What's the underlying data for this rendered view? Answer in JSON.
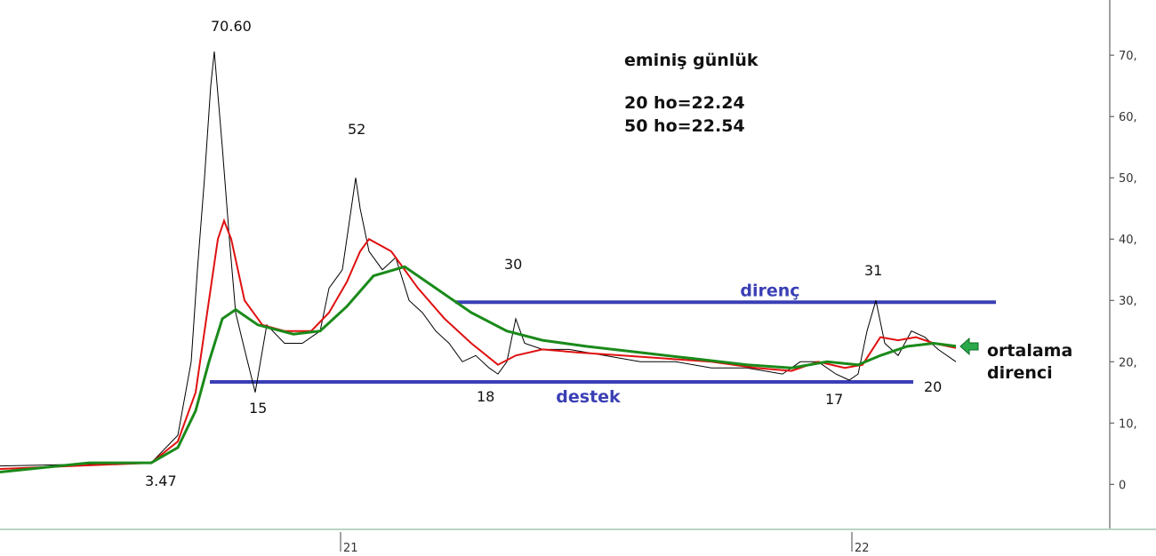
{
  "chart_data": {
    "type": "line",
    "title": "eminiş günlük",
    "xlim": [
      0,
      312
    ],
    "ylim": [
      -7.2,
      79
    ],
    "xticks": [
      {
        "value": 95.75,
        "label": "21"
      },
      {
        "value": 239.5,
        "label": "22"
      }
    ],
    "yticks": [
      0,
      {
        "value": 10,
        "label": "10,"
      },
      {
        "value": 20,
        "label": "20,"
      },
      {
        "value": 30,
        "label": "30,"
      },
      {
        "value": 40,
        "label": "40,"
      },
      {
        "value": 50,
        "label": "50,"
      },
      {
        "value": 60,
        "label": "60,"
      },
      {
        "value": 70,
        "label": "70,"
      }
    ],
    "series": [
      {
        "color": "#000000",
        "x": [
          0,
          42.5,
          50,
          53.75,
          55.5,
          57.5,
          59.25,
          60.25,
          62.5,
          64.5,
          66.25,
          68.75,
          71.75,
          75,
          80,
          85,
          90,
          92.5,
          96.25,
          100,
          101.25,
          103.75,
          107.5,
          111.25,
          115,
          118.75,
          122.5,
          126.25,
          130,
          133.75,
          137.5,
          140,
          142.5,
          145,
          147.5,
          152.5,
          160,
          170,
          180,
          190,
          200,
          210,
          220,
          225,
          230,
          235,
          238.75,
          241.25,
          243.75,
          246.25,
          248.75,
          252.5,
          256.25,
          260,
          263.75,
          268.75
        ],
        "values": [
          3,
          3.5,
          8,
          20,
          35,
          50,
          65,
          70.6,
          55,
          40,
          28,
          22,
          15,
          26,
          23,
          23,
          25,
          32,
          35,
          50,
          45,
          38,
          35,
          37,
          30,
          28,
          25,
          23,
          20,
          21,
          19,
          18,
          20,
          27,
          23,
          22,
          22,
          21,
          20,
          20,
          19,
          19,
          18,
          20,
          20,
          18,
          17,
          18,
          25,
          30,
          23,
          21,
          25,
          24,
          22,
          20
        ]
      },
      {
        "name": "20 ho=22.24",
        "color": "#e01010",
        "x": [
          0,
          42.5,
          50,
          55,
          58.75,
          61.25,
          63,
          65,
          68.75,
          73.75,
          80,
          87.5,
          92.5,
          97.5,
          101.25,
          103.75,
          110,
          117.5,
          125,
          132.5,
          140,
          145,
          152.5,
          162.5,
          175,
          187.5,
          200,
          212.5,
          222.5,
          230,
          237.5,
          242.5,
          247.5,
          252.5,
          257.5,
          262.5,
          268.75
        ],
        "values": [
          2.5,
          3.5,
          7,
          15,
          30,
          40,
          43,
          40,
          30,
          26,
          25,
          25,
          28,
          33,
          38,
          40,
          38,
          32,
          27,
          23,
          19.5,
          21,
          22,
          21.5,
          21,
          20.5,
          20,
          19,
          18.5,
          20,
          19,
          19.5,
          24,
          23.5,
          24,
          23,
          22.24
        ]
      },
      {
        "name": "50 ho=22.54",
        "color": "#1a8a1a",
        "x": [
          0,
          25,
          42.5,
          50,
          55,
          58.75,
          62.5,
          66.25,
          72.5,
          82.5,
          90,
          97.5,
          105,
          113.75,
          122.5,
          132.5,
          142.5,
          152.5,
          165,
          180,
          195,
          210,
          222.5,
          232.5,
          241.25,
          247.5,
          255,
          262.5,
          268.75
        ],
        "values": [
          2,
          3.5,
          3.5,
          6,
          12,
          20,
          27,
          28.5,
          26,
          24.5,
          25,
          29,
          34,
          35.5,
          32,
          28,
          25,
          23.5,
          22.5,
          21.5,
          20.5,
          19.5,
          19,
          20,
          19.5,
          21,
          22.5,
          23,
          22.54
        ]
      }
    ],
    "hlines": [
      {
        "label": "direnç",
        "value": 29.7,
        "x": [
          128,
          280
        ]
      },
      {
        "label": "destek",
        "value": 16.7,
        "x": [
          59,
          256.75
        ]
      }
    ],
    "annotations": [
      "70.60",
      "52",
      "30",
      "31",
      "15",
      "18",
      "17",
      "20",
      "3.47",
      "ortalama",
      "direnci"
    ]
  }
}
